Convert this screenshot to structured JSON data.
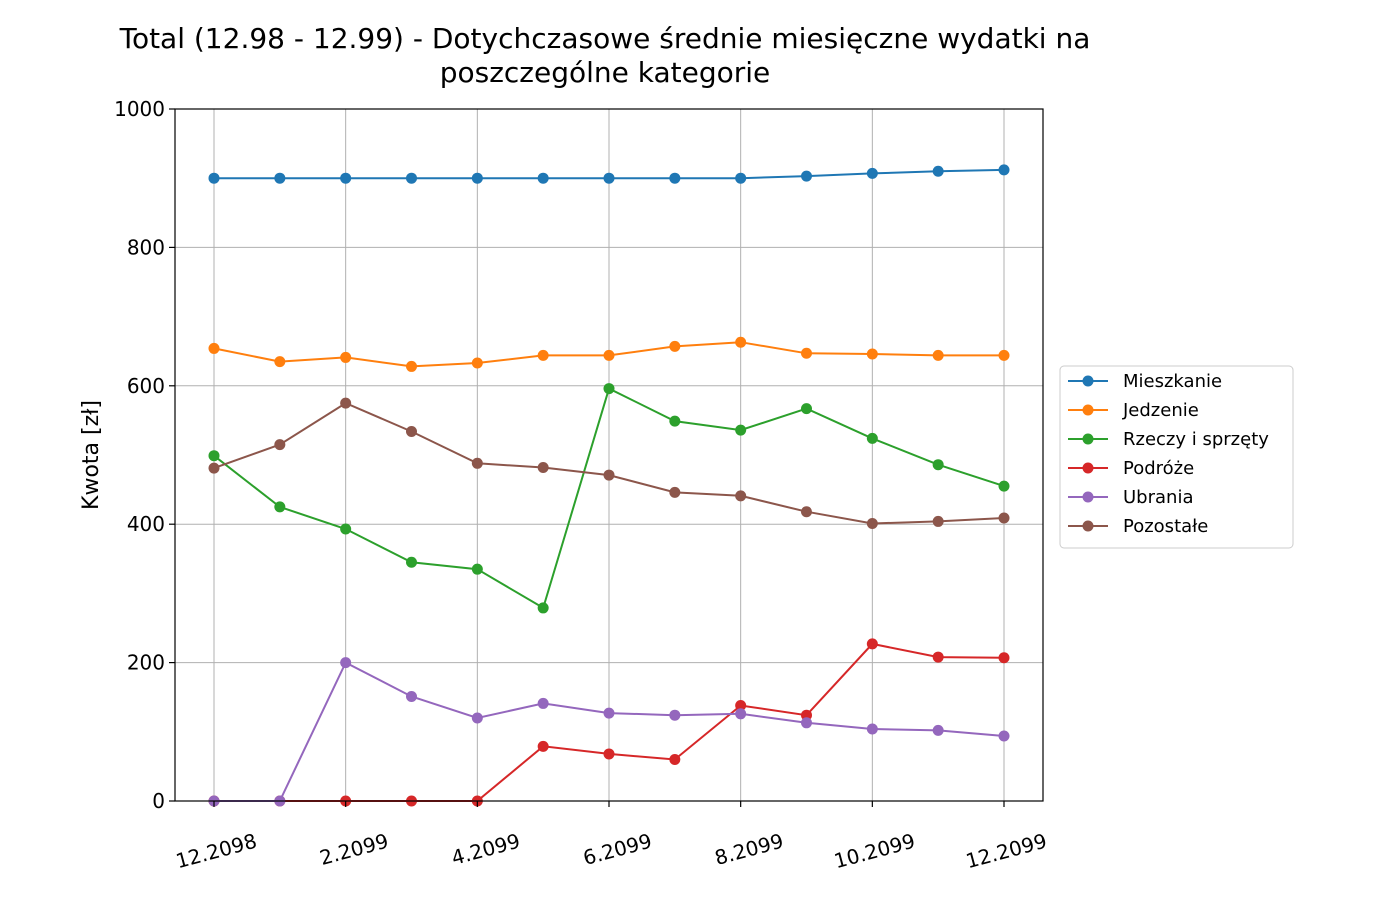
{
  "chart_data": {
    "type": "line",
    "title_line1": "Total (12.98 - 12.99) - Dotychczasowe średnie miesięczne wydatki na",
    "title_line2": "poszczególne kategorie",
    "xlabel": "",
    "ylabel": "Kwota [zł]",
    "ylim": [
      0,
      1000
    ],
    "yticks": [
      0,
      200,
      400,
      600,
      800,
      1000
    ],
    "x": [
      "12.2098",
      "1.2099",
      "2.2099",
      "3.2099",
      "4.2099",
      "5.2099",
      "6.2099",
      "7.2099",
      "8.2099",
      "9.2099",
      "10.2099",
      "11.2099",
      "12.2099"
    ],
    "xtick_labels": [
      "12.2098",
      "2.2099",
      "4.2099",
      "6.2099",
      "8.2099",
      "10.2099",
      "12.2099"
    ],
    "grid": true,
    "legend_position": "right",
    "series": [
      {
        "name": "Mieszkanie",
        "color": "#1f77b4",
        "values": [
          900,
          900,
          900,
          900,
          900,
          900,
          900,
          900,
          900,
          903,
          907,
          910,
          912
        ]
      },
      {
        "name": "Jedzenie",
        "color": "#ff7f0e",
        "values": [
          654,
          635,
          641,
          628,
          633,
          644,
          644,
          657,
          663,
          647,
          646,
          644,
          644
        ]
      },
      {
        "name": "Rzeczy i sprzęty",
        "color": "#2ca02c",
        "values": [
          499,
          425,
          393,
          345,
          335,
          279,
          596,
          549,
          536,
          567,
          524,
          486,
          455
        ]
      },
      {
        "name": "Podróże",
        "color": "#d62728",
        "values": [
          0,
          0,
          0,
          0,
          0,
          79,
          68,
          60,
          138,
          124,
          227,
          208,
          207
        ]
      },
      {
        "name": "Ubrania",
        "color": "#9467bd",
        "values": [
          0,
          0,
          200,
          151,
          120,
          141,
          127,
          124,
          126,
          113,
          104,
          102,
          94
        ]
      },
      {
        "name": "Pozostałe",
        "color": "#8c564b",
        "values": [
          481,
          515,
          575,
          534,
          488,
          482,
          471,
          446,
          441,
          418,
          401,
          404,
          409
        ]
      }
    ]
  }
}
